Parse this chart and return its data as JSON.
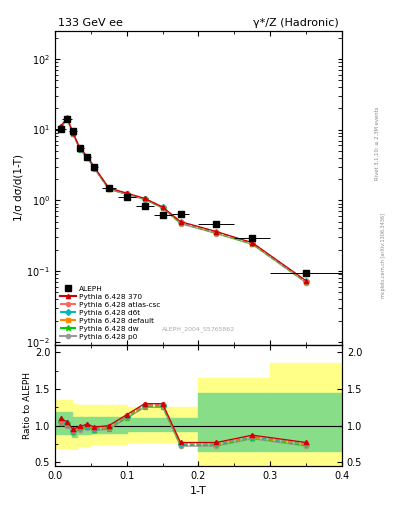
{
  "title_left": "133 GeV ee",
  "title_right": "γ*/Z (Hadronic)",
  "ylabel_main": "1/σ dσ/d(1-T)",
  "ylabel_ratio": "Ratio to ALEPH",
  "xlabel": "1-T",
  "rivet_label": "Rivet 3.1.10; ≥ 2.3M events",
  "arxiv_label": "mcplots.cern.ch [arXiv:1306.3436]",
  "ref_label": "ALEPH_2004_S5765862",
  "aleph_x": [
    0.008,
    0.017,
    0.025,
    0.035,
    0.045,
    0.055,
    0.075,
    0.1,
    0.125,
    0.15,
    0.175,
    0.225,
    0.275,
    0.35
  ],
  "aleph_y": [
    10.2,
    14.0,
    9.5,
    5.5,
    4.1,
    3.0,
    1.5,
    1.1,
    0.82,
    0.62,
    0.65,
    0.47,
    0.29,
    0.095
  ],
  "aleph_xerr": [
    0.008,
    0.007,
    0.005,
    0.005,
    0.005,
    0.005,
    0.01,
    0.0125,
    0.0125,
    0.0125,
    0.0125,
    0.025,
    0.025,
    0.05
  ],
  "aleph_yerr": [
    0.5,
    0.5,
    0.4,
    0.2,
    0.15,
    0.12,
    0.07,
    0.05,
    0.04,
    0.03,
    0.03,
    0.025,
    0.02,
    0.008
  ],
  "mc_x": [
    0.008,
    0.017,
    0.025,
    0.035,
    0.045,
    0.055,
    0.075,
    0.1,
    0.125,
    0.15,
    0.175,
    0.225,
    0.275,
    0.35
  ],
  "ratio_370": [
    1.1,
    1.05,
    0.95,
    0.99,
    1.02,
    0.98,
    1.0,
    1.15,
    1.3,
    1.3,
    0.77,
    0.77,
    0.87,
    0.77
  ],
  "ratio_atlas_csc": [
    1.08,
    1.04,
    0.94,
    0.98,
    1.01,
    0.97,
    0.99,
    1.14,
    1.29,
    1.29,
    0.76,
    0.76,
    0.86,
    0.76
  ],
  "ratio_d6t": [
    1.06,
    1.03,
    0.93,
    0.97,
    1.0,
    0.96,
    0.98,
    1.13,
    1.28,
    1.28,
    0.75,
    0.75,
    0.85,
    0.75
  ],
  "ratio_default": [
    1.05,
    1.02,
    0.92,
    0.96,
    0.99,
    0.95,
    0.97,
    1.12,
    1.27,
    1.27,
    0.74,
    0.74,
    0.84,
    0.74
  ],
  "ratio_dw": [
    1.04,
    1.01,
    0.91,
    0.95,
    0.98,
    0.94,
    0.96,
    1.11,
    1.26,
    1.26,
    0.73,
    0.73,
    0.83,
    0.73
  ],
  "ratio_p0": [
    1.03,
    1.0,
    0.9,
    0.94,
    0.97,
    0.93,
    0.95,
    1.1,
    1.25,
    1.25,
    0.72,
    0.72,
    0.82,
    0.72
  ],
  "band_x_edges": [
    0.0,
    0.016,
    0.024,
    0.03,
    0.05,
    0.1,
    0.2,
    0.3,
    0.4
  ],
  "band_green_lo": [
    0.88,
    0.88,
    0.85,
    0.88,
    0.9,
    0.92,
    0.65,
    0.65,
    0.65
  ],
  "band_green_hi": [
    1.18,
    1.18,
    1.12,
    1.12,
    1.12,
    1.1,
    1.45,
    1.45,
    1.45
  ],
  "band_yellow_lo": [
    0.7,
    0.7,
    0.68,
    0.72,
    0.75,
    0.78,
    0.45,
    0.45,
    0.45
  ],
  "band_yellow_hi": [
    1.35,
    1.35,
    1.3,
    1.28,
    1.28,
    1.25,
    1.65,
    1.85,
    1.85
  ],
  "color_370": "#cc0000",
  "color_atlas_csc": "#ff6666",
  "color_d6t": "#00bbbb",
  "color_default": "#ff8800",
  "color_dw": "#00cc00",
  "color_p0": "#999999",
  "bg_color": "#ffffff",
  "ylim_main": [
    0.009,
    250
  ],
  "ylim_ratio": [
    0.45,
    2.1
  ],
  "ratio_yticks": [
    0.5,
    1.0,
    1.5,
    2.0
  ],
  "xlim": [
    0.0,
    0.4
  ]
}
